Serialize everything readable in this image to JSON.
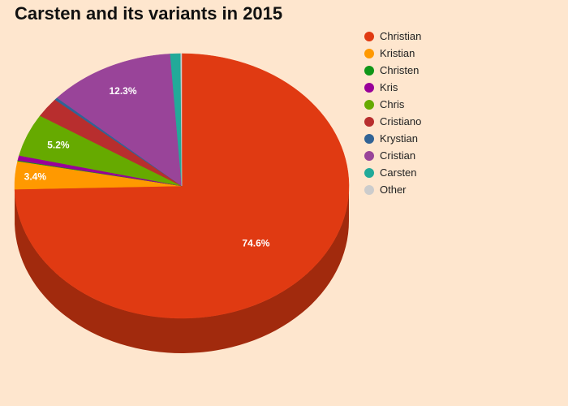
{
  "chart_data": {
    "type": "pie",
    "style": "3d",
    "title": "Carsten and its variants in 2015",
    "legend_position": "right",
    "slices": [
      {
        "label": "Christian",
        "value": 74.6,
        "color": "#e03a12",
        "data_label": "74.6%"
      },
      {
        "label": "Kristian",
        "value": 3.4,
        "color": "#ff9900",
        "data_label": "3.4%"
      },
      {
        "label": "Christen",
        "value": 0.1,
        "color": "#109618",
        "data_label": ""
      },
      {
        "label": "Kris",
        "value": 0.6,
        "color": "#990099",
        "data_label": ""
      },
      {
        "label": "Chris",
        "value": 5.2,
        "color": "#66aa00",
        "data_label": "5.2%"
      },
      {
        "label": "Cristiano",
        "value": 2.4,
        "color": "#b82e2e",
        "data_label": ""
      },
      {
        "label": "Krystian",
        "value": 0.3,
        "color": "#316395",
        "data_label": ""
      },
      {
        "label": "Cristian",
        "value": 12.3,
        "color": "#994499",
        "data_label": "12.3%"
      },
      {
        "label": "Carsten",
        "value": 1.0,
        "color": "#22aa99",
        "data_label": ""
      },
      {
        "label": "Other",
        "value": 0.1,
        "color": "#cccccc",
        "data_label": ""
      }
    ]
  }
}
